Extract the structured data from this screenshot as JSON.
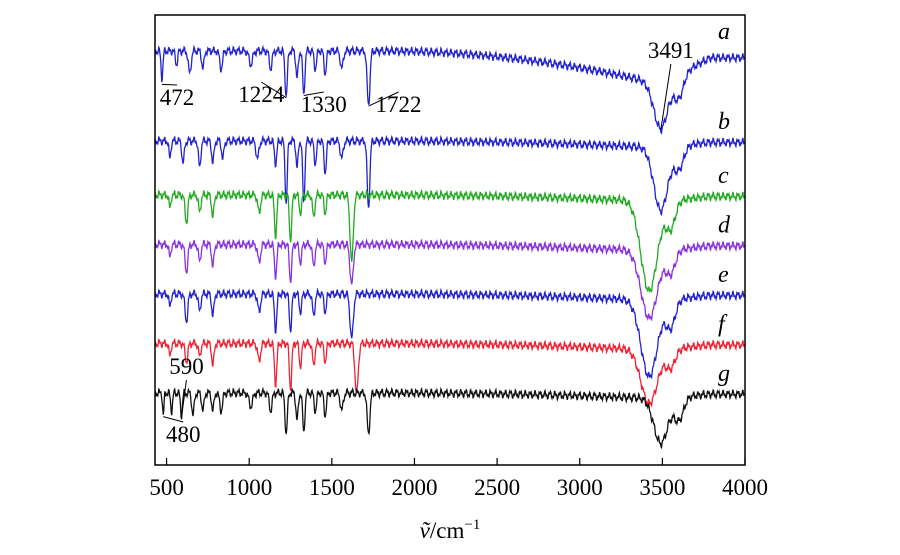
{
  "chart_data": {
    "type": "line",
    "xlabel_prefix": "ṽ",
    "xlabel_unit": "/cm",
    "xlabel_sup": "−1",
    "xlim": [
      430,
      4000
    ],
    "xticks": [
      500,
      1000,
      1500,
      2000,
      2500,
      3000,
      3500,
      4000
    ],
    "grid": false,
    "series": [
      {
        "name": "a",
        "color": "#2222cc",
        "baseline": 0.92,
        "dips": [
          [
            472,
            0.06,
            8
          ],
          [
            560,
            0.03,
            10
          ],
          [
            640,
            0.05,
            12
          ],
          [
            720,
            0.04,
            10
          ],
          [
            830,
            0.04,
            12
          ],
          [
            1010,
            0.03,
            15
          ],
          [
            1130,
            0.04,
            12
          ],
          [
            1224,
            0.1,
            10
          ],
          [
            1290,
            0.06,
            10
          ],
          [
            1330,
            0.1,
            9
          ],
          [
            1400,
            0.04,
            10
          ],
          [
            1460,
            0.05,
            10
          ],
          [
            1560,
            0.04,
            12
          ],
          [
            1722,
            0.12,
            12
          ],
          [
            3491,
            0.1,
            60
          ],
          [
            3600,
            0.05,
            40
          ]
        ],
        "drift": 0.3
      },
      {
        "name": "b",
        "color": "#2222cc",
        "baseline": 0.72,
        "dips": [
          [
            520,
            0.04,
            8
          ],
          [
            600,
            0.05,
            10
          ],
          [
            700,
            0.06,
            10
          ],
          [
            780,
            0.05,
            10
          ],
          [
            840,
            0.04,
            10
          ],
          [
            1050,
            0.04,
            12
          ],
          [
            1160,
            0.05,
            10
          ],
          [
            1224,
            0.14,
            9
          ],
          [
            1290,
            0.06,
            9
          ],
          [
            1330,
            0.14,
            9
          ],
          [
            1400,
            0.05,
            10
          ],
          [
            1460,
            0.07,
            10
          ],
          [
            1560,
            0.04,
            12
          ],
          [
            1722,
            0.15,
            11
          ],
          [
            3491,
            0.14,
            60
          ],
          [
            3600,
            0.05,
            40
          ]
        ],
        "drift": 0.06
      },
      {
        "name": "c",
        "color": "#22aa22",
        "baseline": 0.6,
        "dips": [
          [
            520,
            0.03,
            8
          ],
          [
            620,
            0.06,
            12
          ],
          [
            700,
            0.04,
            10
          ],
          [
            780,
            0.05,
            10
          ],
          [
            1060,
            0.04,
            12
          ],
          [
            1160,
            0.09,
            10
          ],
          [
            1250,
            0.1,
            10
          ],
          [
            1310,
            0.04,
            10
          ],
          [
            1390,
            0.05,
            10
          ],
          [
            1460,
            0.04,
            10
          ],
          [
            1620,
            0.15,
            14
          ],
          [
            3420,
            0.2,
            70
          ],
          [
            3550,
            0.06,
            40
          ]
        ],
        "drift": 0.06
      },
      {
        "name": "d",
        "color": "#8833dd",
        "baseline": 0.49,
        "dips": [
          [
            520,
            0.03,
            8
          ],
          [
            620,
            0.06,
            12
          ],
          [
            700,
            0.04,
            10
          ],
          [
            780,
            0.05,
            10
          ],
          [
            1060,
            0.04,
            12
          ],
          [
            1160,
            0.07,
            10
          ],
          [
            1250,
            0.08,
            10
          ],
          [
            1310,
            0.04,
            10
          ],
          [
            1390,
            0.05,
            10
          ],
          [
            1460,
            0.04,
            10
          ],
          [
            1620,
            0.09,
            14
          ],
          [
            3420,
            0.15,
            70
          ],
          [
            3550,
            0.05,
            40
          ]
        ],
        "drift": 0.06
      },
      {
        "name": "e",
        "color": "#2222cc",
        "baseline": 0.38,
        "dips": [
          [
            520,
            0.03,
            8
          ],
          [
            620,
            0.06,
            12
          ],
          [
            700,
            0.04,
            10
          ],
          [
            780,
            0.05,
            10
          ],
          [
            1060,
            0.04,
            12
          ],
          [
            1160,
            0.08,
            10
          ],
          [
            1250,
            0.08,
            10
          ],
          [
            1310,
            0.04,
            10
          ],
          [
            1390,
            0.05,
            10
          ],
          [
            1460,
            0.04,
            10
          ],
          [
            1620,
            0.1,
            14
          ],
          [
            3420,
            0.17,
            70
          ],
          [
            3550,
            0.06,
            40
          ]
        ],
        "drift": 0.06
      },
      {
        "name": "f",
        "color": "#ee2233",
        "baseline": 0.27,
        "dips": [
          [
            520,
            0.03,
            8
          ],
          [
            620,
            0.04,
            12
          ],
          [
            700,
            0.03,
            10
          ],
          [
            780,
            0.05,
            10
          ],
          [
            1060,
            0.04,
            12
          ],
          [
            1160,
            0.09,
            10
          ],
          [
            1250,
            0.1,
            10
          ],
          [
            1310,
            0.05,
            10
          ],
          [
            1390,
            0.05,
            10
          ],
          [
            1460,
            0.04,
            10
          ],
          [
            1650,
            0.11,
            14
          ],
          [
            3420,
            0.12,
            70
          ],
          [
            3550,
            0.04,
            40
          ]
        ],
        "drift": 0.06
      },
      {
        "name": "g",
        "color": "#111111",
        "baseline": 0.16,
        "dips": [
          [
            480,
            0.05,
            6
          ],
          [
            530,
            0.04,
            8
          ],
          [
            590,
            0.05,
            8
          ],
          [
            660,
            0.05,
            10
          ],
          [
            720,
            0.04,
            10
          ],
          [
            780,
            0.04,
            10
          ],
          [
            830,
            0.04,
            12
          ],
          [
            1010,
            0.03,
            15
          ],
          [
            1130,
            0.04,
            12
          ],
          [
            1224,
            0.09,
            10
          ],
          [
            1290,
            0.06,
            10
          ],
          [
            1330,
            0.09,
            9
          ],
          [
            1400,
            0.04,
            10
          ],
          [
            1460,
            0.05,
            10
          ],
          [
            1560,
            0.04,
            12
          ],
          [
            1722,
            0.09,
            12
          ],
          [
            3491,
            0.1,
            60
          ],
          [
            3600,
            0.05,
            40
          ]
        ],
        "drift": 0.05
      }
    ],
    "annotations": [
      {
        "text": "472",
        "x": 472,
        "series": "a"
      },
      {
        "text": "1224",
        "x": 1224,
        "series": "a"
      },
      {
        "text": "1330",
        "x": 1330,
        "series": "a"
      },
      {
        "text": "1722",
        "x": 1722,
        "series": "a"
      },
      {
        "text": "3491",
        "x": 3491,
        "series": "a"
      },
      {
        "text": "590",
        "x": 590,
        "series": "g"
      },
      {
        "text": "480",
        "x": 480,
        "series": "g"
      }
    ]
  }
}
